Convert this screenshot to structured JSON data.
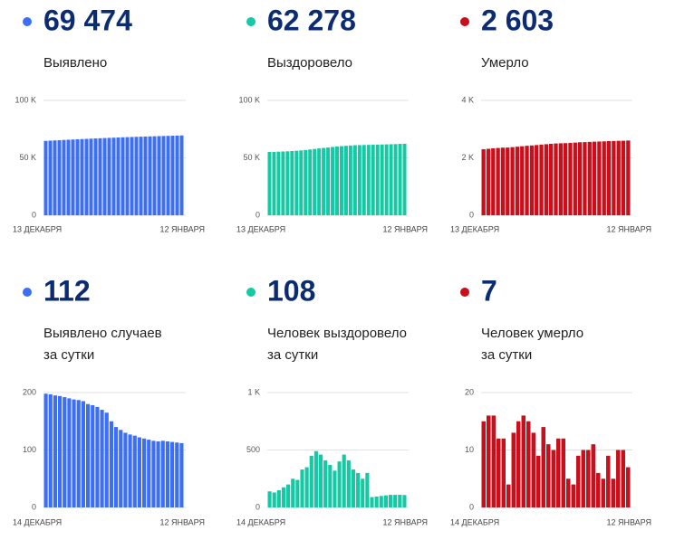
{
  "chart_data": [
    {
      "type": "bar",
      "total": "69 474",
      "subtitle": [
        "Выявлено"
      ],
      "color": "#3c6ff5",
      "categories": [
        "13 ДЕКАБРЯ",
        null,
        null,
        null,
        null,
        null,
        null,
        null,
        null,
        null,
        null,
        null,
        null,
        null,
        null,
        null,
        null,
        null,
        null,
        null,
        null,
        null,
        null,
        null,
        null,
        null,
        null,
        null,
        null,
        null,
        "12 ЯНВАРЯ"
      ],
      "values": [
        64780,
        64980,
        65180,
        65377,
        65572,
        65766,
        65958,
        66148,
        66335,
        66520,
        66703,
        66882,
        67057,
        67229,
        67397,
        67560,
        67720,
        67876,
        68020,
        68158,
        68290,
        68418,
        68542,
        68666,
        68787,
        68905,
        69021,
        69137,
        69249,
        69362,
        69474
      ],
      "ylim": [
        0,
        100000
      ],
      "yticks": [
        0,
        {
          "value": 50000,
          "label": "50 K"
        },
        {
          "value": 100000,
          "label": "100 K"
        }
      ],
      "grid": true
    },
    {
      "type": "bar",
      "total": "62 278",
      "subtitle": [
        "Выздоровело"
      ],
      "color": "#17c8a5",
      "categories": [
        "13 ДЕКАБРЯ",
        null,
        null,
        null,
        null,
        null,
        null,
        null,
        null,
        null,
        null,
        null,
        null,
        null,
        null,
        null,
        null,
        null,
        null,
        null,
        null,
        null,
        null,
        null,
        null,
        null,
        null,
        null,
        null,
        null,
        "12 ЯНВАРЯ"
      ],
      "values": [
        55100,
        55230,
        55370,
        55510,
        55670,
        55920,
        56150,
        56450,
        56850,
        57300,
        57760,
        58210,
        58630,
        59000,
        59450,
        59830,
        60180,
        60490,
        60700,
        60990,
        61090,
        61190,
        61290,
        61400,
        61510,
        61620,
        61730,
        61840,
        61950,
        62170,
        62278
      ],
      "ylim": [
        0,
        100000
      ],
      "yticks": [
        0,
        {
          "value": 50000,
          "label": "50 K"
        },
        {
          "value": 100000,
          "label": "100 K"
        }
      ],
      "grid": true
    },
    {
      "type": "bar",
      "total": "2 603",
      "subtitle": [
        "Умерло"
      ],
      "color": "#c8101c",
      "categories": [
        "13 ДЕКАБРЯ",
        null,
        null,
        null,
        null,
        null,
        null,
        null,
        null,
        null,
        null,
        null,
        null,
        null,
        null,
        null,
        null,
        null,
        null,
        null,
        null,
        null,
        null,
        null,
        null,
        null,
        null,
        null,
        null,
        null,
        "12 ЯНВАРЯ"
      ],
      "values": [
        2300,
        2315,
        2331,
        2343,
        2355,
        2359,
        2372,
        2388,
        2403,
        2419,
        2431,
        2445,
        2461,
        2475,
        2488,
        2501,
        2507,
        2512,
        2521,
        2532,
        2543,
        2548,
        2556,
        2563,
        2569,
        2574,
        2583,
        2587,
        2592,
        2596,
        2603
      ],
      "ylim": [
        0,
        4000
      ],
      "yticks": [
        0,
        {
          "value": 2000,
          "label": "2 K"
        },
        {
          "value": 4000,
          "label": "4 K"
        }
      ],
      "grid": true
    },
    {
      "type": "bar",
      "total": "112",
      "subtitle": [
        "Выявлено случаев",
        "за сутки"
      ],
      "color": "#3c6ff5",
      "categories": [
        "14 ДЕКАБРЯ",
        null,
        null,
        null,
        null,
        null,
        null,
        null,
        null,
        null,
        null,
        null,
        null,
        null,
        null,
        null,
        null,
        null,
        null,
        null,
        null,
        null,
        null,
        null,
        null,
        null,
        null,
        null,
        null,
        "12 ЯНВАРЯ"
      ],
      "values": [
        198,
        197,
        195,
        194,
        192,
        190,
        188,
        187,
        185,
        180,
        178,
        175,
        170,
        165,
        150,
        140,
        135,
        130,
        127,
        125,
        122,
        120,
        118,
        116,
        115,
        116,
        115,
        114,
        113,
        112
      ],
      "ylim": [
        0,
        200
      ],
      "yticks": [
        0,
        100,
        200
      ],
      "grid": true
    },
    {
      "type": "bar",
      "total": "108",
      "subtitle": [
        "Человек выздоровело",
        "за сутки"
      ],
      "color": "#17c8a5",
      "categories": [
        "14 ДЕКАБРЯ",
        null,
        null,
        null,
        null,
        null,
        null,
        null,
        null,
        null,
        null,
        null,
        null,
        null,
        null,
        null,
        null,
        null,
        null,
        null,
        null,
        null,
        null,
        null,
        null,
        null,
        null,
        null,
        null,
        "12 ЯНВАРЯ"
      ],
      "values": [
        140,
        130,
        150,
        175,
        200,
        250,
        240,
        330,
        350,
        450,
        490,
        460,
        410,
        370,
        320,
        400,
        460,
        410,
        330,
        300,
        250,
        300,
        90,
        95,
        100,
        105,
        110,
        110,
        110,
        108
      ],
      "ylim": [
        0,
        1000
      ],
      "yticks": [
        0,
        500,
        {
          "value": 1000,
          "label": "1 K"
        }
      ],
      "grid": true
    },
    {
      "type": "bar",
      "total": "7",
      "subtitle": [
        "Человек умерло",
        "за сутки"
      ],
      "color": "#c8101c",
      "categories": [
        "14 ДЕКАБРЯ",
        null,
        null,
        null,
        null,
        null,
        null,
        null,
        null,
        null,
        null,
        null,
        null,
        null,
        null,
        null,
        null,
        null,
        null,
        null,
        null,
        null,
        null,
        null,
        null,
        null,
        null,
        null,
        null,
        "12 ЯНВАРЯ"
      ],
      "values": [
        15,
        16,
        16,
        12,
        12,
        4,
        13,
        15,
        16,
        15,
        13,
        9,
        14,
        11,
        10,
        12,
        12,
        5,
        4,
        9,
        10,
        10,
        11,
        6,
        5,
        9,
        5,
        10,
        10,
        7
      ],
      "ylim": [
        0,
        20
      ],
      "yticks": [
        0,
        10,
        20
      ],
      "grid": true
    }
  ]
}
